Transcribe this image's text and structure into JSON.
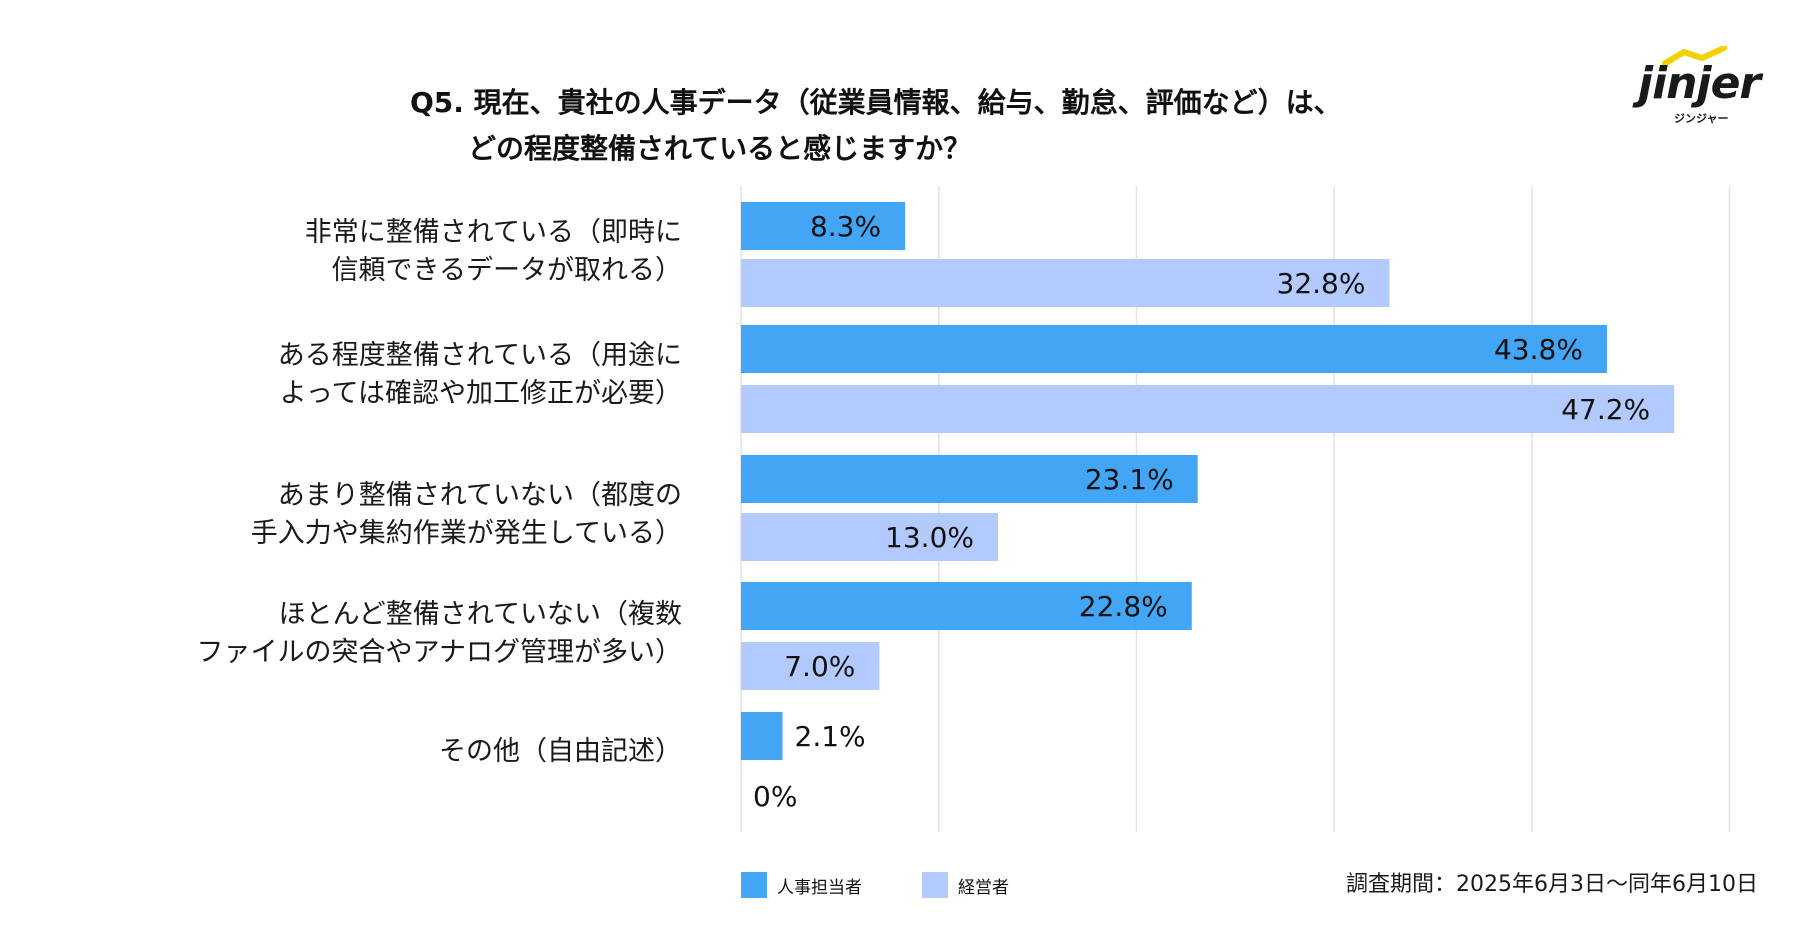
{
  "title": {
    "line1": "Q5. 現在、貴社の人事データ（従業員情報、給与、勤怠、評価など）は、",
    "line2": "どの程度整備されていると感じますか？"
  },
  "logo": {
    "name": "jinjer",
    "sub": "ジンジャー"
  },
  "legend": {
    "hr": "人事担当者",
    "exec": "経営者"
  },
  "period": "調査期間：2025年6月3日〜同年6月10日",
  "colors": {
    "hr": "#42a5f5",
    "exec": "#b3caff",
    "grid": "#e3e3e3"
  },
  "chart_data": {
    "type": "bar",
    "orientation": "horizontal",
    "categories": [
      [
        "非常に整備されている（即時に",
        "信頼できるデータが取れる）"
      ],
      [
        "ある程度整備されている（用途に",
        "よっては確認や加工修正が必要）"
      ],
      [
        "あまり整備されていない（都度の",
        "手入力や集約作業が発生している）"
      ],
      [
        "ほとんど整備されていない（複数",
        "ファイルの突合やアナログ管理が多い）"
      ],
      [
        "その他（自由記述）"
      ]
    ],
    "series": [
      {
        "name": "人事担当者",
        "values": [
          8.3,
          43.8,
          23.1,
          22.8,
          2.1
        ],
        "labels": [
          "8.3%",
          "43.8%",
          "23.1%",
          "22.8%",
          "2.1%"
        ]
      },
      {
        "name": "経営者",
        "values": [
          32.8,
          47.2,
          13.0,
          7.0,
          0
        ],
        "labels": [
          "32.8%",
          "47.2%",
          "13.0%",
          "7.0%",
          "0%"
        ]
      }
    ],
    "xlim": [
      0,
      50
    ],
    "grid": true,
    "gridlines": 5,
    "legend_position": "bottom-left"
  }
}
